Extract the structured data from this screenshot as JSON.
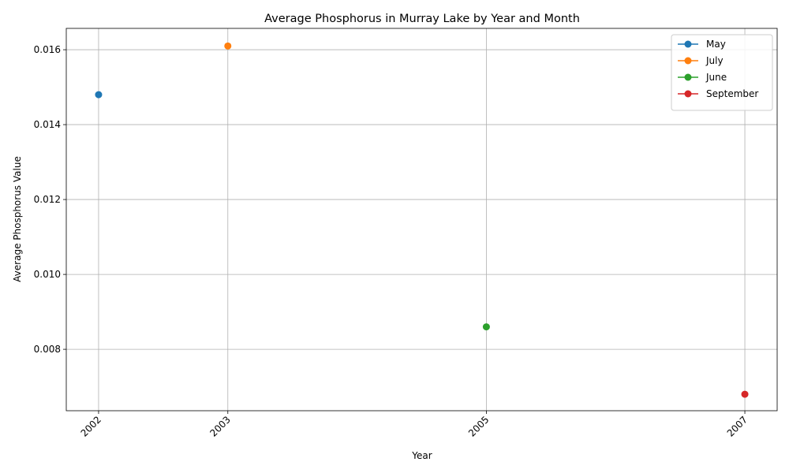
{
  "chart_data": {
    "type": "line",
    "title": "Average Phosphorus in Murray Lake by Year and Month",
    "xlabel": "Year",
    "ylabel": "Average Phosphorus Value",
    "x_ticks": [
      "2002",
      "2003",
      "2005",
      "2007"
    ],
    "y_ticks": [
      "0.008",
      "0.010",
      "0.012",
      "0.014",
      "0.016"
    ],
    "xlim": [
      2001.75,
      2007.25
    ],
    "ylim": [
      0.00636,
      0.01657
    ],
    "grid": true,
    "legend_position": "top-right",
    "series": [
      {
        "name": "May",
        "color": "#1f77b4",
        "points": [
          [
            2002,
            0.0148
          ]
        ]
      },
      {
        "name": "July",
        "color": "#ff7f0e",
        "points": [
          [
            2003,
            0.0161
          ]
        ]
      },
      {
        "name": "June",
        "color": "#2ca02c",
        "points": [
          [
            2005,
            0.0086
          ]
        ]
      },
      {
        "name": "September",
        "color": "#d62728",
        "points": [
          [
            2007,
            0.0068
          ]
        ]
      }
    ]
  }
}
